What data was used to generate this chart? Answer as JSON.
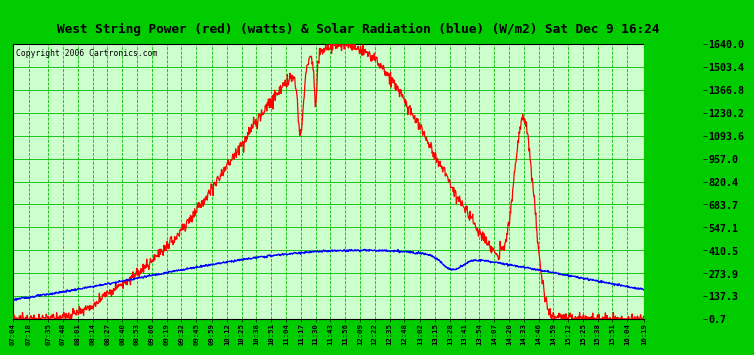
{
  "title": "West String Power (red) (watts) & Solar Radiation (blue) (W/m2) Sat Dec 9 16:24",
  "copyright": "Copyright 2006 Cartronics.com",
  "yticks": [
    0.7,
    137.3,
    273.9,
    410.5,
    547.1,
    683.7,
    820.4,
    957.0,
    1093.6,
    1230.2,
    1366.8,
    1503.4,
    1640.0
  ],
  "ymin": 0.7,
  "ymax": 1640.0,
  "title_color": "#000000",
  "title_bg": "#ffffff",
  "plot_bg_color": "#ccffcc",
  "right_bg_color": "#00cc00",
  "grid_color": "#00bb00",
  "xtick_labels": [
    "07:04",
    "07:18",
    "07:35",
    "07:48",
    "08:01",
    "08:14",
    "08:27",
    "08:40",
    "08:53",
    "09:06",
    "09:19",
    "09:32",
    "09:45",
    "09:59",
    "10:12",
    "10:25",
    "10:38",
    "10:51",
    "11:04",
    "11:17",
    "11:30",
    "11:43",
    "11:56",
    "12:09",
    "12:22",
    "12:35",
    "12:48",
    "13:02",
    "13:15",
    "13:28",
    "13:41",
    "13:54",
    "14:07",
    "14:20",
    "14:33",
    "14:46",
    "14:59",
    "15:12",
    "15:25",
    "15:38",
    "15:51",
    "16:04",
    "16:19"
  ],
  "power_peak_time": 11.93,
  "power_peak_val": 1635,
  "solar_peak_time": 12.15,
  "solar_peak_val": 410
}
